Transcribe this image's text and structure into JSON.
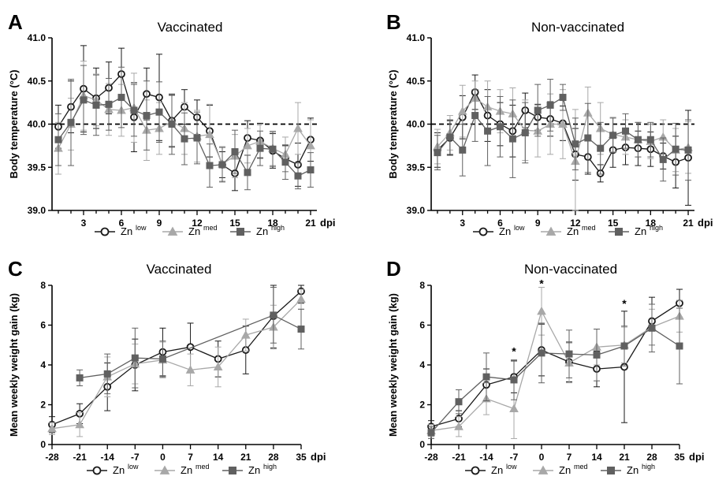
{
  "chart_data": [
    {
      "panel": "A",
      "title": "Vaccinated",
      "type": "line",
      "ylabel": "Body temperature (°C)",
      "unit": "dpi",
      "ylim": [
        39.0,
        41.0
      ],
      "yticks": [
        "39.0",
        "39.5",
        "40.0",
        "40.5",
        "41.0"
      ],
      "xlim": [
        0.5,
        21.5
      ],
      "x": [
        1,
        2,
        3,
        4,
        5,
        6,
        7,
        8,
        9,
        10,
        11,
        12,
        13,
        14,
        15,
        16,
        17,
        18,
        19,
        20,
        21
      ],
      "xticks": [
        "3",
        "6",
        "9",
        "12",
        "15",
        "18",
        "21"
      ],
      "reference_line": 40.0,
      "series": [
        {
          "name": "Zn",
          "sup": "low",
          "marker": "circle",
          "values": [
            39.97,
            40.2,
            40.41,
            40.3,
            40.42,
            40.58,
            40.08,
            40.35,
            40.31,
            40.04,
            40.2,
            40.08,
            39.92,
            39.53,
            39.43,
            39.84,
            39.81,
            39.69,
            39.6,
            39.53,
            39.82
          ],
          "errors": [
            0.25,
            0.3,
            0.5,
            0.35,
            0.3,
            0.3,
            0.4,
            0.3,
            0.5,
            0.3,
            0.2,
            0.2,
            0.3,
            0.15,
            0.2,
            0.2,
            0.2,
            0.2,
            0.15,
            0.25,
            0.25
          ]
        },
        {
          "name": "Zn",
          "sup": "med",
          "marker": "triangle",
          "values": [
            39.72,
            40.0,
            40.33,
            40.28,
            40.17,
            40.16,
            40.19,
            39.93,
            39.95,
            40.03,
            39.95,
            39.86,
            39.88,
            39.54,
            39.63,
            39.75,
            39.8,
            39.72,
            39.65,
            39.95,
            39.75
          ],
          "errors": [
            0.3,
            0.3,
            0.4,
            0.3,
            0.3,
            0.3,
            0.4,
            0.35,
            0.3,
            0.3,
            0.3,
            0.3,
            0.35,
            0.2,
            0.25,
            0.2,
            0.2,
            0.2,
            0.2,
            0.3,
            0.3
          ]
        },
        {
          "name": "Zn",
          "sup": "high",
          "marker": "square",
          "values": [
            39.82,
            40.02,
            40.28,
            40.22,
            40.23,
            40.31,
            40.16,
            40.1,
            40.14,
            40.0,
            39.83,
            39.84,
            39.52,
            39.53,
            39.68,
            39.44,
            39.72,
            39.71,
            39.56,
            39.4,
            39.47
          ],
          "errors": [
            0.3,
            0.5,
            0.4,
            0.35,
            0.3,
            0.35,
            0.3,
            0.4,
            0.35,
            0.35,
            0.3,
            0.3,
            0.25,
            0.2,
            0.25,
            0.2,
            0.2,
            0.2,
            0.2,
            0.15,
            0.2
          ]
        }
      ]
    },
    {
      "panel": "B",
      "title": "Non-vaccinated",
      "type": "line",
      "ylabel": "Body temperature (°C)",
      "unit": "dpi",
      "ylim": [
        39.0,
        41.0
      ],
      "yticks": [
        "39.0",
        "39.5",
        "40.0",
        "40.5",
        "41.0"
      ],
      "xlim": [
        0.5,
        21.5
      ],
      "x": [
        1,
        2,
        3,
        4,
        5,
        6,
        7,
        8,
        9,
        10,
        11,
        12,
        13,
        14,
        15,
        16,
        17,
        18,
        19,
        20,
        21
      ],
      "xticks": [
        "3",
        "6",
        "9",
        "12",
        "15",
        "18",
        "21"
      ],
      "reference_line": 40.0,
      "series": [
        {
          "name": "Zn",
          "sup": "low",
          "marker": "circle",
          "values": [
            39.7,
            39.84,
            40.08,
            40.37,
            40.1,
            40.0,
            39.92,
            40.16,
            40.08,
            40.06,
            40.01,
            39.65,
            39.62,
            39.43,
            39.7,
            39.73,
            39.72,
            39.71,
            39.63,
            39.56,
            39.61
          ],
          "errors": [
            0.2,
            0.2,
            0.25,
            0.2,
            0.3,
            0.25,
            0.3,
            0.2,
            0.15,
            0.2,
            0.2,
            0.3,
            0.2,
            0.1,
            0.2,
            0.2,
            0.2,
            0.2,
            0.15,
            0.3,
            0.55
          ]
        },
        {
          "name": "Zn",
          "sup": "med",
          "marker": "triangle",
          "values": [
            39.74,
            39.9,
            40.15,
            40.3,
            40.2,
            40.15,
            40.12,
            39.93,
            39.92,
            40.0,
            40.0,
            39.57,
            40.13,
            39.95,
            39.88,
            39.85,
            39.82,
            39.8,
            39.85,
            39.7,
            39.73
          ],
          "errors": [
            0.2,
            0.2,
            0.3,
            0.2,
            0.3,
            0.25,
            0.3,
            0.35,
            0.3,
            0.35,
            0.4,
            0.6,
            0.3,
            0.3,
            0.2,
            0.2,
            0.2,
            0.2,
            0.2,
            0.25,
            0.3
          ]
        },
        {
          "name": "Zn",
          "sup": "high",
          "marker": "square",
          "values": [
            39.67,
            39.85,
            39.7,
            40.1,
            39.92,
            39.97,
            39.83,
            39.9,
            40.16,
            40.22,
            40.31,
            39.77,
            39.84,
            39.72,
            39.87,
            39.92,
            39.82,
            39.82,
            39.59,
            39.71,
            39.7
          ],
          "errors": [
            0.2,
            0.2,
            0.3,
            0.3,
            0.4,
            0.35,
            0.45,
            0.35,
            0.3,
            0.3,
            0.15,
            0.3,
            0.4,
            0.3,
            0.2,
            0.2,
            0.2,
            0.2,
            0.25,
            0.3,
            0.35
          ]
        }
      ]
    },
    {
      "panel": "C",
      "title": "Vaccinated",
      "type": "line",
      "ylabel": "Mean weekly weight gain (kg)",
      "unit": "dpi",
      "ylim": [
        0,
        8
      ],
      "yticks": [
        "0",
        "2",
        "4",
        "6",
        "8"
      ],
      "xlim": [
        -28,
        35
      ],
      "x": [
        -28,
        -21,
        -14,
        -7,
        0,
        7,
        14,
        21,
        28,
        35
      ],
      "xticks": [
        "-28",
        "-21",
        "-14",
        "-7",
        "0",
        "7",
        "14",
        "21",
        "28",
        "35"
      ],
      "series": [
        {
          "name": "Zn",
          "sup": "low",
          "marker": "circle",
          "values": [
            1.0,
            1.55,
            2.9,
            4.0,
            4.65,
            4.9,
            4.3,
            4.75,
            6.45,
            7.7
          ],
          "errors": [
            0.4,
            0.5,
            1.2,
            1.3,
            1.2,
            1.2,
            0.9,
            1.2,
            1.6,
            0.6
          ]
        },
        {
          "name": "Zn",
          "sup": "med",
          "marker": "triangle",
          "values": [
            0.8,
            1.0,
            3.4,
            4.05,
            4.25,
            3.75,
            3.9,
            5.5,
            5.9,
            7.3
          ],
          "errors": [
            0.3,
            0.6,
            1.0,
            1.0,
            0.9,
            0.8,
            1.0,
            0.8,
            1.1,
            0.5
          ]
        },
        {
          "name": "Zn",
          "sup": "high",
          "marker": "square",
          "values": [
            null,
            3.35,
            3.55,
            4.35,
            4.3,
            null,
            null,
            null,
            6.5,
            5.8
          ],
          "errors": [
            0,
            0.4,
            1.0,
            1.5,
            0.9,
            0,
            0,
            0,
            1.4,
            1.0
          ]
        }
      ]
    },
    {
      "panel": "D",
      "title": "Non-vaccinated",
      "type": "line",
      "ylabel": "Mean weekly weight gain (kg)",
      "unit": "dpi",
      "ylim": [
        0,
        8
      ],
      "yticks": [
        "0",
        "2",
        "4",
        "6",
        "8"
      ],
      "xlim": [
        -28,
        35
      ],
      "x": [
        -28,
        -21,
        -14,
        -7,
        0,
        7,
        14,
        21,
        28,
        35
      ],
      "xticks": [
        "-28",
        "-21",
        "-14",
        "-7",
        "0",
        "7",
        "14",
        "21",
        "28",
        "35"
      ],
      "annotations": [
        {
          "x": -7,
          "y": 4.5,
          "text": "*"
        },
        {
          "x": 0,
          "y": 7.9,
          "text": "*"
        },
        {
          "x": 21,
          "y": 6.9,
          "text": "*"
        }
      ],
      "series": [
        {
          "name": "Zn",
          "sup": "low",
          "marker": "circle",
          "values": [
            0.9,
            1.3,
            3.0,
            3.4,
            4.75,
            4.15,
            3.8,
            3.9,
            6.2,
            7.1
          ],
          "errors": [
            0.3,
            0.4,
            0.8,
            0.8,
            1.3,
            1.0,
            0.9,
            2.8,
            1.2,
            0.7
          ]
        },
        {
          "name": "Zn",
          "sup": "med",
          "marker": "triangle",
          "values": [
            0.7,
            0.9,
            2.3,
            1.8,
            6.7,
            4.1,
            4.9,
            5.0,
            5.9,
            6.45
          ],
          "errors": [
            0.3,
            0.5,
            0.8,
            1.5,
            1.2,
            1.0,
            0.9,
            0.9,
            0.9,
            0.8
          ]
        },
        {
          "name": "Zn",
          "sup": "high",
          "marker": "square",
          "values": [
            0.6,
            2.15,
            3.4,
            3.25,
            4.6,
            4.55,
            4.5,
            4.95,
            5.85,
            4.95
          ],
          "errors": [
            0.3,
            0.6,
            1.2,
            1.0,
            1.5,
            1.2,
            1.3,
            1.0,
            1.2,
            1.9
          ]
        }
      ]
    }
  ]
}
